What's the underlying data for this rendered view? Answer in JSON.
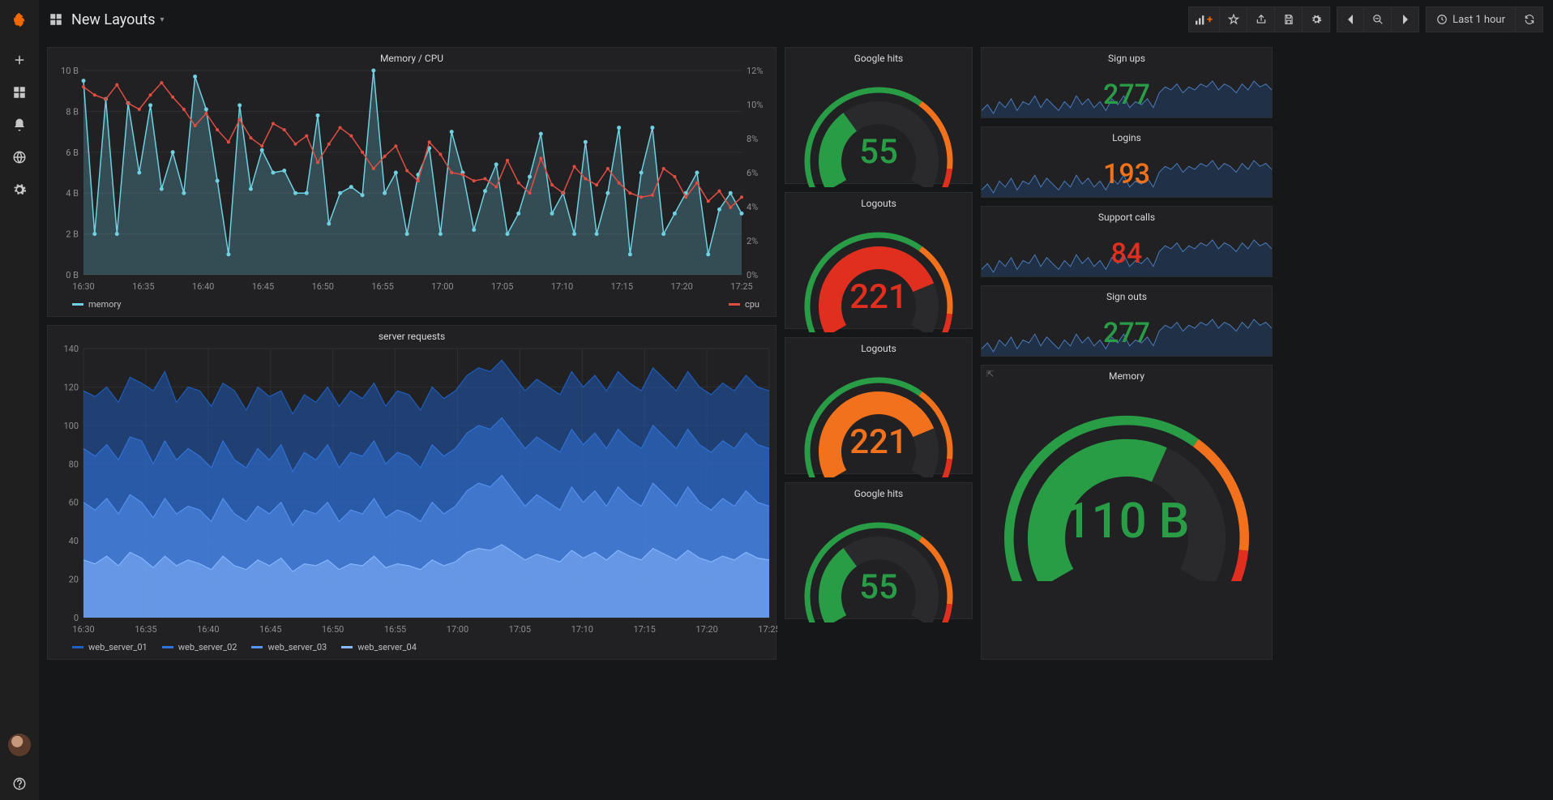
{
  "colors": {
    "bg": "#161719",
    "panel": "#212124",
    "grid": "#2f2f31",
    "text": "#d8d9da",
    "accent": "#f46800",
    "green": "#299c46",
    "orange": "#f2711c",
    "red": "#e02f1f",
    "teal": "#6ed0e0",
    "redline": "#e24d42",
    "blues": [
      "#1f60c4",
      "#3274d9",
      "#5794f2",
      "#8ab8ff"
    ]
  },
  "topbar": {
    "title": "New Layouts",
    "time_label": "Last 1 hour"
  },
  "nav": {
    "items": [
      "create",
      "dashboards",
      "alerts",
      "explore",
      "settings"
    ]
  },
  "memcpu": {
    "title": "Memory / CPU",
    "x_labels": [
      "16:30",
      "16:35",
      "16:40",
      "16:45",
      "16:50",
      "16:55",
      "17:00",
      "17:05",
      "17:10",
      "17:15",
      "17:20",
      "17:25"
    ],
    "y_left": {
      "min": 0,
      "max": 10,
      "step": 2,
      "suffix": " B"
    },
    "y_right": {
      "min": 0,
      "max": 12,
      "step": 2,
      "suffix": "%"
    },
    "legend": [
      {
        "label": "memory",
        "color": "#6ed0e0"
      },
      {
        "label": "cpu",
        "color": "#e24d42"
      }
    ],
    "memory": [
      9.5,
      2,
      8.6,
      2,
      8.4,
      5,
      8.3,
      4.2,
      6,
      4,
      9.7,
      8.1,
      4.6,
      1,
      8.3,
      4.2,
      6.1,
      5,
      5.1,
      4,
      4,
      7.8,
      2.5,
      4,
      4.3,
      3.9,
      10,
      4,
      5,
      2,
      4.9,
      6.2,
      2,
      7,
      5,
      2.2,
      4.1,
      5.4,
      2,
      3,
      4.8,
      6.9,
      3,
      4,
      2,
      6.5,
      2,
      4,
      7.2,
      1,
      5,
      7.2,
      2,
      3,
      4,
      5,
      1,
      3.2,
      4,
      3
    ],
    "cpu": [
      9.2,
      8.8,
      8.6,
      9.3,
      8.4,
      8.1,
      8.8,
      9.4,
      8.7,
      8.1,
      7.3,
      7.9,
      7.1,
      6.5,
      7.6,
      6.7,
      6.3,
      7.4,
      7.1,
      6.4,
      6.8,
      5.5,
      6.4,
      7.2,
      6.8,
      6,
      5.2,
      5.8,
      6.3,
      5.1,
      4.6,
      6.5,
      5.9,
      5,
      4.9,
      4.6,
      4.7,
      4.3,
      5.6,
      4.5,
      4,
      5.7,
      4.4,
      4,
      5.3,
      4.7,
      4.4,
      5.2,
      4.5,
      4,
      3.8,
      3.9,
      5.2,
      4.8,
      3.8,
      4.5,
      3.6,
      4.1,
      3.3,
      3.8
    ]
  },
  "requests": {
    "title": "server requests",
    "x_labels": [
      "16:30",
      "16:35",
      "16:40",
      "16:45",
      "16:50",
      "16:55",
      "17:00",
      "17:05",
      "17:10",
      "17:15",
      "17:20",
      "17:25"
    ],
    "y": {
      "min": 0,
      "max": 140,
      "step": 20
    },
    "legend": [
      {
        "label": "web_server_01",
        "color": "#1f60c4"
      },
      {
        "label": "web_server_02",
        "color": "#3274d9"
      },
      {
        "label": "web_server_03",
        "color": "#5794f2"
      },
      {
        "label": "web_server_04",
        "color": "#8ab8ff"
      }
    ],
    "series": [
      [
        118,
        115,
        120,
        112,
        125,
        122,
        118,
        128,
        112,
        120,
        118,
        110,
        122,
        118,
        108,
        120,
        115,
        118,
        106,
        116,
        112,
        120,
        110,
        118,
        114,
        122,
        110,
        118,
        116,
        108,
        120,
        114,
        118,
        126,
        130,
        128,
        134,
        126,
        118,
        124,
        120,
        116,
        128,
        120,
        126,
        118,
        128,
        122,
        118,
        130,
        124,
        118,
        128,
        120,
        116,
        122,
        118,
        126,
        120,
        118
      ],
      [
        88,
        84,
        90,
        82,
        94,
        92,
        80,
        92,
        82,
        88,
        84,
        78,
        92,
        82,
        78,
        88,
        82,
        90,
        76,
        86,
        82,
        90,
        78,
        86,
        84,
        92,
        80,
        86,
        84,
        78,
        90,
        84,
        88,
        96,
        100,
        98,
        104,
        96,
        88,
        94,
        90,
        86,
        98,
        90,
        96,
        88,
        98,
        92,
        88,
        100,
        94,
        88,
        98,
        90,
        86,
        92,
        88,
        96,
        90,
        88
      ],
      [
        60,
        56,
        62,
        54,
        64,
        60,
        52,
        62,
        54,
        58,
        56,
        50,
        62,
        54,
        50,
        58,
        54,
        60,
        48,
        56,
        54,
        60,
        50,
        56,
        54,
        62,
        52,
        56,
        54,
        50,
        60,
        54,
        58,
        66,
        70,
        68,
        74,
        66,
        58,
        64,
        60,
        56,
        68,
        60,
        66,
        58,
        68,
        62,
        58,
        70,
        64,
        58,
        68,
        60,
        56,
        62,
        58,
        66,
        60,
        58
      ],
      [
        30,
        28,
        32,
        27,
        34,
        31,
        26,
        32,
        27,
        30,
        28,
        25,
        32,
        27,
        25,
        30,
        27,
        31,
        24,
        28,
        27,
        30,
        25,
        28,
        27,
        32,
        26,
        28,
        27,
        25,
        30,
        27,
        29,
        34,
        36,
        35,
        38,
        34,
        30,
        33,
        31,
        29,
        35,
        31,
        34,
        30,
        35,
        32,
        30,
        36,
        33,
        30,
        35,
        31,
        29,
        32,
        30,
        34,
        31,
        30
      ]
    ]
  },
  "gauges": {
    "google1": {
      "title": "Google hits",
      "value": "55",
      "pct": 35,
      "color": "#299c46"
    },
    "logouts1": {
      "title": "Logouts",
      "value": "221",
      "pct": 78,
      "color": "#e02f1f"
    },
    "logouts2": {
      "title": "Logouts",
      "value": "221",
      "pct": 78,
      "color": "#f2711c"
    },
    "google2": {
      "title": "Google hits",
      "value": "55",
      "pct": 35,
      "color": "#299c46"
    },
    "memory": {
      "title": "Memory",
      "value": "110 B",
      "pct": 60,
      "color": "#299c46"
    }
  },
  "stats": {
    "signups": {
      "title": "Sign ups",
      "value": "277",
      "color": "#299c46"
    },
    "logins": {
      "title": "Logins",
      "value": "193",
      "color": "#f2711c"
    },
    "support": {
      "title": "Support calls",
      "value": "84",
      "color": "#e02f1f"
    },
    "signouts": {
      "title": "Sign outs",
      "value": "277",
      "color": "#299c46"
    }
  },
  "spark": [
    22,
    24,
    21,
    25,
    23,
    26,
    22,
    25,
    24,
    27,
    23,
    26,
    24,
    22,
    25,
    23,
    27,
    24,
    26,
    23,
    25,
    22,
    26,
    24,
    27,
    23,
    25,
    24,
    26,
    23,
    28,
    30,
    29,
    31,
    28,
    30,
    29,
    31,
    30,
    32,
    29,
    31,
    30,
    28,
    31,
    29,
    32,
    30,
    31,
    29
  ]
}
